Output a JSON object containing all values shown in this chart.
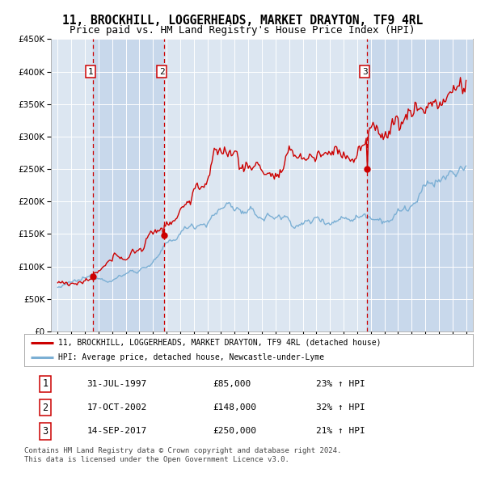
{
  "title": "11, BROCKHILL, LOGGERHEADS, MARKET DRAYTON, TF9 4RL",
  "subtitle": "Price paid vs. HM Land Registry's House Price Index (HPI)",
  "title_fontsize": 10.5,
  "subtitle_fontsize": 9,
  "background_color": "#ffffff",
  "plot_bg_color": "#dce6f1",
  "plot_bg_alt": "#c8d8eb",
  "grid_color": "#ffffff",
  "red_line_color": "#cc0000",
  "blue_line_color": "#7bafd4",
  "ylim": [
    0,
    450000
  ],
  "yticks": [
    0,
    50000,
    100000,
    150000,
    200000,
    250000,
    300000,
    350000,
    400000,
    450000
  ],
  "xstart_year": 1995,
  "xend_year": 2025,
  "sale_points": [
    {
      "year": 1997.58,
      "price": 85000,
      "label": "1",
      "date": "31-JUL-1997",
      "hpi_pct": "23%"
    },
    {
      "year": 2002.79,
      "price": 148000,
      "label": "2",
      "date": "17-OCT-2002",
      "hpi_pct": "32%"
    },
    {
      "year": 2017.71,
      "price": 250000,
      "label": "3",
      "date": "14-SEP-2017",
      "hpi_pct": "21%"
    }
  ],
  "legend_entries": [
    "11, BROCKHILL, LOGGERHEADS, MARKET DRAYTON, TF9 4RL (detached house)",
    "HPI: Average price, detached house, Newcastle-under-Lyme"
  ],
  "table_rows": [
    [
      "1",
      "31-JUL-1997",
      "£85,000",
      "23% ↑ HPI"
    ],
    [
      "2",
      "17-OCT-2002",
      "£148,000",
      "32% ↑ HPI"
    ],
    [
      "3",
      "14-SEP-2017",
      "£250,000",
      "21% ↑ HPI"
    ]
  ],
  "footer": "Contains HM Land Registry data © Crown copyright and database right 2024.\nThis data is licensed under the Open Government Licence v3.0.",
  "dashed_line_color": "#cc0000"
}
